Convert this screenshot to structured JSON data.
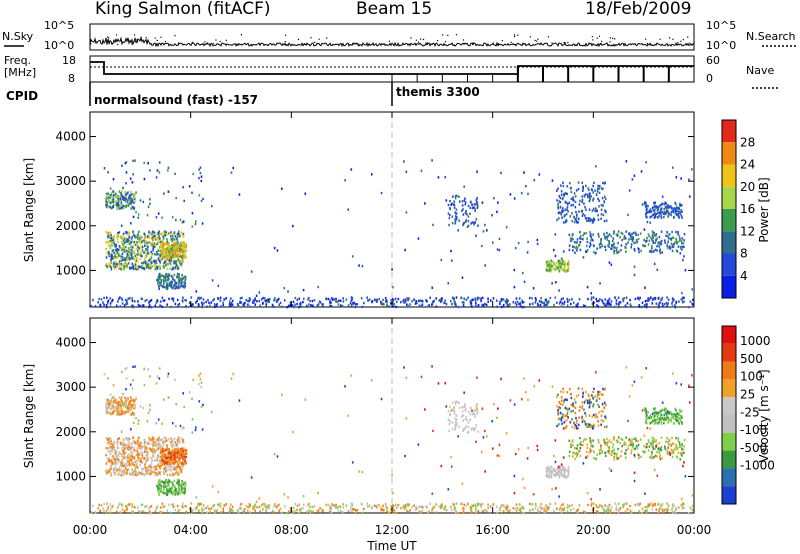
{
  "header": {
    "station": "King Salmon (fitACF)",
    "beam": "Beam 15",
    "date": "18/Feb/2009"
  },
  "nsky_panel": {
    "left_label": "N.Sky",
    "right_label": "N.Search",
    "left_ticks": [
      "10^5",
      "10^0"
    ],
    "right_ticks": [
      "10^5",
      "10^0"
    ]
  },
  "freq_panel": {
    "left_label_line1": "Freq.",
    "left_label_line2": "[MHz]",
    "right_label": "Nave",
    "left_ticks": [
      "18",
      "8"
    ],
    "right_ticks": [
      "60",
      "0"
    ]
  },
  "cpid": {
    "label": "CPID",
    "modes": [
      {
        "name": "normalsound (fast) -157",
        "start_hour": 0
      },
      {
        "name": "themis 3300",
        "start_hour": 12
      }
    ]
  },
  "chart_data": [
    {
      "type": "heatmap",
      "name": "power",
      "ylabel": "Slant Range [km]",
      "y_ticks": [
        1000,
        2000,
        3000,
        4000
      ],
      "ylim": [
        180,
        4550
      ],
      "colorbar_label": "Power [dB]",
      "colorbar_ticks": [
        "4",
        "8",
        "12",
        "16",
        "20",
        "24",
        "28"
      ],
      "colors": [
        "#0a1ee6",
        "#2448d8",
        "#2f6e8c",
        "#3d9b4f",
        "#a8d64a",
        "#f0c417",
        "#f08a17",
        "#e3291b"
      ]
    },
    {
      "type": "heatmap",
      "name": "velocity",
      "ylabel": "Slant Range [km]",
      "y_ticks": [
        1000,
        2000,
        3000,
        4000
      ],
      "ylim": [
        180,
        4550
      ],
      "colorbar_label": "Velocity [m s⁻¹]",
      "colorbar_ticks": [
        "1000",
        "500",
        "100",
        "25",
        "-25",
        "-100",
        "-500",
        "-1000"
      ],
      "colors": [
        "#1b3fd0",
        "#2a6fb0",
        "#3c9a3e",
        "#7fcf4a",
        "#c0c0c0",
        "#c8c8c8",
        "#f0a12a",
        "#f07a18",
        "#e33a12",
        "#e01010"
      ],
      "xlabel": "Time UT",
      "x_ticks": [
        "00:00",
        "04:00",
        "08:00",
        "12:00",
        "16:00",
        "20:00",
        "00:00"
      ]
    }
  ]
}
